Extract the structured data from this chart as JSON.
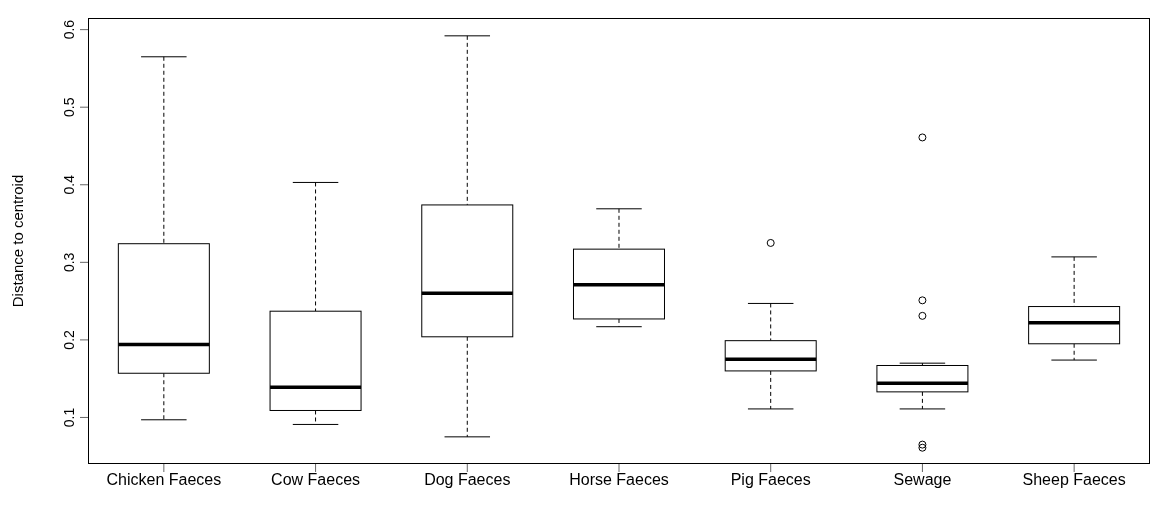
{
  "chart_data": {
    "type": "box",
    "ylabel": "Distance to centroid",
    "categories": [
      "Chicken Faeces",
      "Cow Faeces",
      "Dog Faeces",
      "Horse Faeces",
      "Pig Faeces",
      "Sewage",
      "Sheep Faeces"
    ],
    "boxes": [
      {
        "low": 0.097,
        "q1": 0.157,
        "median": 0.194,
        "q3": 0.324,
        "high": 0.565
      },
      {
        "low": 0.091,
        "q1": 0.109,
        "median": 0.139,
        "q3": 0.237,
        "high": 0.403
      },
      {
        "low": 0.075,
        "q1": 0.204,
        "median": 0.26,
        "q3": 0.374,
        "high": 0.592
      },
      {
        "low": 0.217,
        "q1": 0.227,
        "median": 0.271,
        "q3": 0.317,
        "high": 0.369
      },
      {
        "low": 0.111,
        "q1": 0.16,
        "median": 0.175,
        "q3": 0.199,
        "high": 0.247,
        "outliers": [
          0.325
        ]
      },
      {
        "low": 0.111,
        "q1": 0.133,
        "median": 0.144,
        "q3": 0.167,
        "high": 0.17,
        "outliers": [
          0.461,
          0.251,
          0.231,
          0.065,
          0.061
        ]
      },
      {
        "low": 0.174,
        "q1": 0.195,
        "median": 0.222,
        "q3": 0.243,
        "high": 0.307
      }
    ],
    "ylim": [
      0.04,
      0.615
    ],
    "yticks": [
      0.1,
      0.2,
      0.3,
      0.4,
      0.5,
      0.6
    ],
    "grid": false,
    "legend": false
  }
}
